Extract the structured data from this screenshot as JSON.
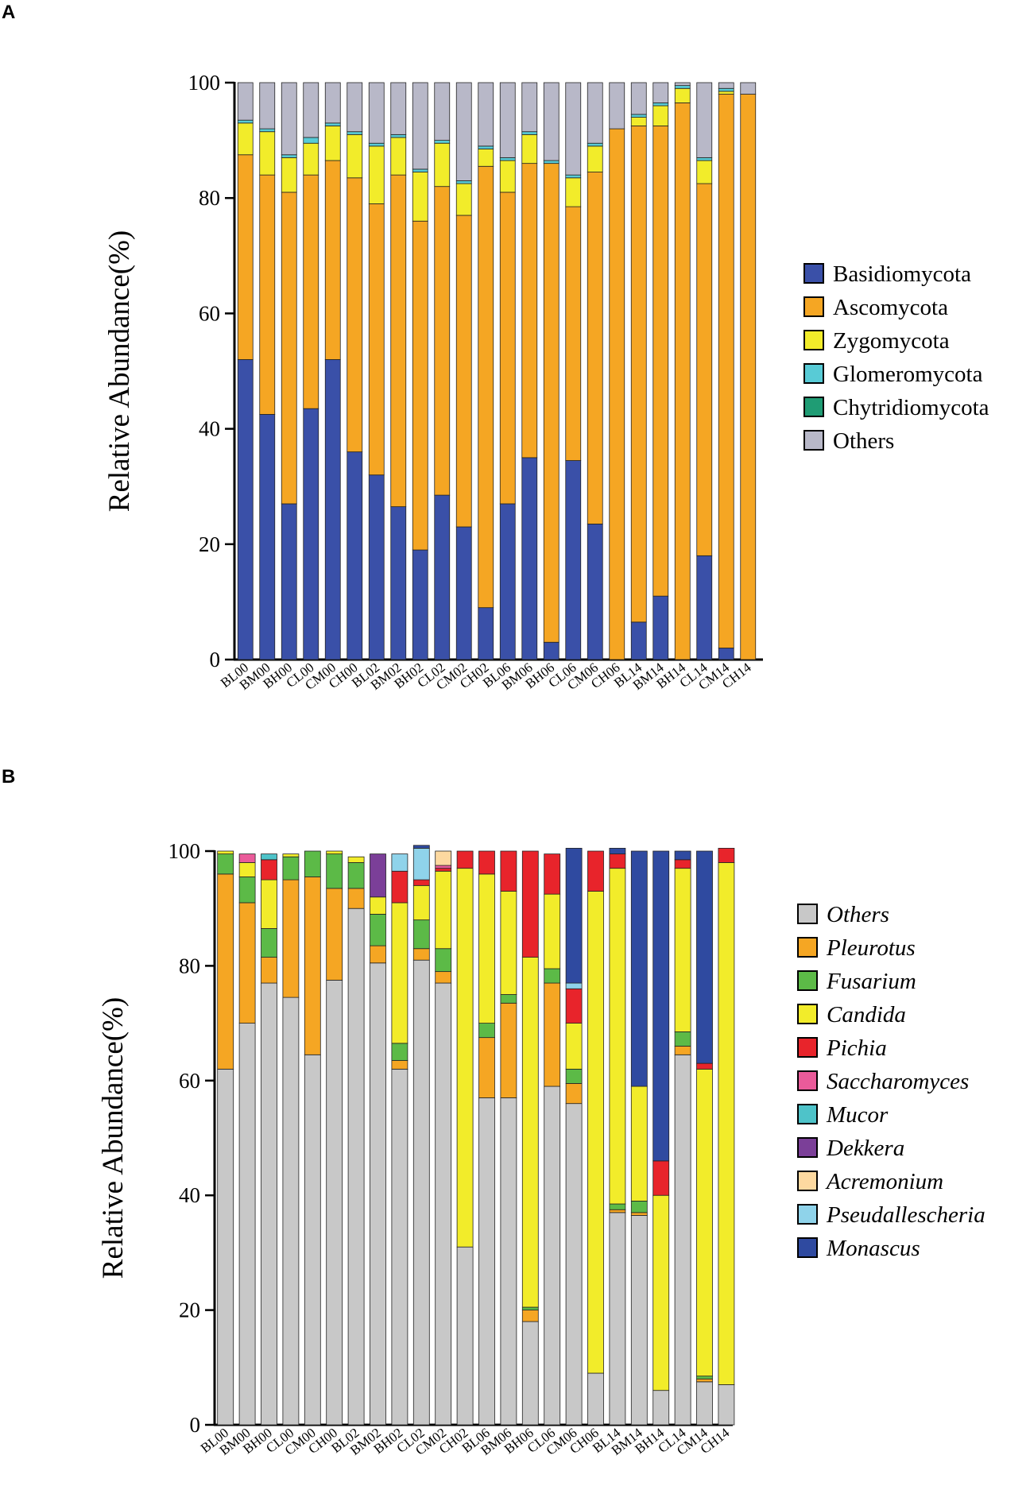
{
  "chart_data": [
    {
      "panel_label": "A",
      "type": "bar",
      "stacked": true,
      "ylabel": "Relative Abundance(%)",
      "xlabel": "",
      "ylim": [
        0,
        100
      ],
      "yticks": [
        "0",
        "20",
        "40",
        "60",
        "80",
        "100"
      ],
      "italic_legend": false,
      "categories": [
        "BL00",
        "BM00",
        "BH00",
        "CL00",
        "CM00",
        "CH00",
        "BL02",
        "BM02",
        "BH02",
        "CL02",
        "CM02",
        "CH02",
        "BL06",
        "BM06",
        "BH06",
        "CL06",
        "CM06",
        "CH06",
        "BL14",
        "BM14",
        "BH14",
        "CL14",
        "CM14",
        "CH14"
      ],
      "series": [
        {
          "name": "Basidiomycota",
          "color": "#3a50a8",
          "values": [
            52,
            42.5,
            27,
            43.5,
            52,
            36,
            32,
            26.5,
            19,
            28.5,
            23,
            9,
            27,
            35,
            3,
            34.5,
            23.5,
            0,
            6.5,
            11,
            0,
            18,
            2,
            0
          ]
        },
        {
          "name": "Ascomycota",
          "color": "#f5a623",
          "values": [
            35.5,
            41.5,
            54,
            40.5,
            34.5,
            47.5,
            47,
            57.5,
            57,
            53.5,
            54,
            76.5,
            54,
            51,
            83,
            44,
            61,
            92,
            86,
            81.5,
            96.5,
            64.5,
            96,
            98
          ]
        },
        {
          "name": "Zygomycota",
          "color": "#f2ec2a",
          "values": [
            5.5,
            7.5,
            6,
            5.5,
            6,
            7.5,
            10,
            6.5,
            8.5,
            7.5,
            5.5,
            3,
            5.5,
            5,
            0,
            5,
            4.5,
            0,
            1.5,
            3.5,
            2.5,
            4,
            0.5,
            0
          ]
        },
        {
          "name": "Glomeromycota",
          "color": "#58cbd6",
          "values": [
            0.5,
            0.5,
            0.5,
            1,
            0.5,
            0.5,
            0.5,
            0.5,
            0.5,
            0.5,
            0.5,
            0.5,
            0.5,
            0.5,
            0.5,
            0.5,
            0.5,
            0,
            0.5,
            0.5,
            0.5,
            0.5,
            0.5,
            0
          ]
        },
        {
          "name": "Chytridiomycota",
          "color": "#1f9c74",
          "values": [
            0,
            0,
            0,
            0,
            0,
            0,
            0,
            0,
            0,
            0,
            0,
            0,
            0,
            0,
            0,
            0,
            0,
            0,
            0,
            0,
            0,
            0,
            0,
            0
          ]
        },
        {
          "name": "Others",
          "color": "#b8b8c8",
          "values": [
            6.5,
            8,
            12.5,
            9.5,
            7,
            8.5,
            10.5,
            9,
            15,
            10,
            17,
            11,
            13,
            8.5,
            13.5,
            16,
            10.5,
            8,
            5.5,
            3.5,
            0.5,
            13,
            1,
            2
          ]
        }
      ]
    },
    {
      "panel_label": "B",
      "type": "bar",
      "stacked": true,
      "ylabel": "Relative Abundance(%)",
      "xlabel": "",
      "ylim": [
        0,
        100
      ],
      "yticks": [
        "0",
        "20",
        "40",
        "60",
        "80",
        "100"
      ],
      "italic_legend": true,
      "categories": [
        "BL00",
        "BM00",
        "BH00",
        "CL00",
        "CM00",
        "CH00",
        "BL02",
        "BM02",
        "BH02",
        "CL02",
        "CM02",
        "CH02",
        "BL06",
        "BM06",
        "BH06",
        "CL06",
        "CM06",
        "CH06",
        "BL14",
        "BM14",
        "BH14",
        "CL14",
        "CM14",
        "CH14"
      ],
      "series": [
        {
          "name": "Others",
          "color": "#c8c8c8",
          "values": [
            62,
            70,
            77,
            74.5,
            64.5,
            77.5,
            90,
            80.5,
            62,
            81,
            77,
            31,
            57,
            57,
            18,
            59,
            56,
            9,
            37,
            36.5,
            6,
            64.5,
            7.5,
            7
          ]
        },
        {
          "name": "Pleurotus",
          "color": "#f5a623",
          "values": [
            34,
            21,
            4.5,
            20.5,
            31,
            16,
            3.5,
            3,
            1.5,
            2,
            2,
            0,
            10.5,
            16.5,
            2,
            18,
            3.5,
            0,
            0.5,
            0.5,
            0,
            1.5,
            0.5,
            0
          ]
        },
        {
          "name": "Fusarium",
          "color": "#5cba47",
          "values": [
            3.5,
            4.5,
            5,
            4,
            4.5,
            6,
            4.5,
            5.5,
            3,
            5,
            4,
            0,
            2.5,
            1.5,
            0.5,
            2.5,
            2.5,
            0,
            1,
            2,
            0,
            2.5,
            0.5,
            0
          ]
        },
        {
          "name": "Candida",
          "color": "#f2ec2a",
          "values": [
            0.5,
            2.5,
            8.5,
            0.5,
            0,
            0.5,
            1,
            3,
            24.5,
            6,
            13.5,
            66,
            26,
            18,
            61,
            13,
            8,
            84,
            58.5,
            20,
            34,
            28.5,
            53.5,
            91
          ]
        },
        {
          "name": "Pichia",
          "color": "#e8242b",
          "values": [
            0,
            0,
            3.5,
            0,
            0,
            0,
            0,
            0,
            5.5,
            1,
            0.5,
            3,
            4,
            7,
            18.5,
            7,
            6,
            7,
            2.5,
            0,
            6,
            1.5,
            1,
            2.5
          ]
        },
        {
          "name": "Saccharomyces",
          "color": "#ea5b9a",
          "values": [
            0,
            1.5,
            0,
            0,
            0,
            0,
            0,
            0,
            0,
            0,
            0.5,
            0,
            0,
            0,
            0,
            0,
            0,
            0,
            0,
            0,
            0,
            0,
            0,
            0
          ]
        },
        {
          "name": "Mucor",
          "color": "#4ec3c9",
          "values": [
            0,
            0,
            1,
            0,
            0,
            0,
            0,
            0,
            0,
            0,
            0,
            0,
            0,
            0,
            0,
            0,
            0,
            0,
            0,
            0,
            0,
            0,
            0,
            0
          ]
        },
        {
          "name": "Dekkera",
          "color": "#7b3f98",
          "values": [
            0,
            0,
            0,
            0,
            0,
            0,
            0,
            7.5,
            0,
            0,
            0,
            0,
            0,
            0,
            0,
            0,
            0,
            0,
            0,
            0,
            0,
            0,
            0,
            0
          ]
        },
        {
          "name": "Acremonium",
          "color": "#fdd9a0",
          "values": [
            0,
            0,
            0,
            0,
            0,
            0,
            0,
            0,
            0,
            0,
            2.5,
            0,
            0,
            0,
            0,
            0,
            0,
            0,
            0,
            0,
            0,
            0,
            0,
            0
          ]
        },
        {
          "name": "Pseudallescheria",
          "color": "#8fd3ea",
          "values": [
            0,
            0,
            0,
            0,
            0,
            0,
            0,
            0,
            3,
            5.5,
            0,
            0,
            0,
            0,
            0,
            0,
            1,
            0,
            0,
            0,
            0,
            0,
            0,
            0
          ]
        },
        {
          "name": "Monascus",
          "color": "#2f4aa0",
          "values": [
            0,
            0,
            0,
            0,
            0,
            0,
            0,
            0,
            0,
            0.5,
            0,
            0,
            0,
            0,
            0,
            0,
            23.5,
            0,
            1,
            41,
            54,
            1.5,
            37,
            0
          ]
        }
      ]
    }
  ]
}
